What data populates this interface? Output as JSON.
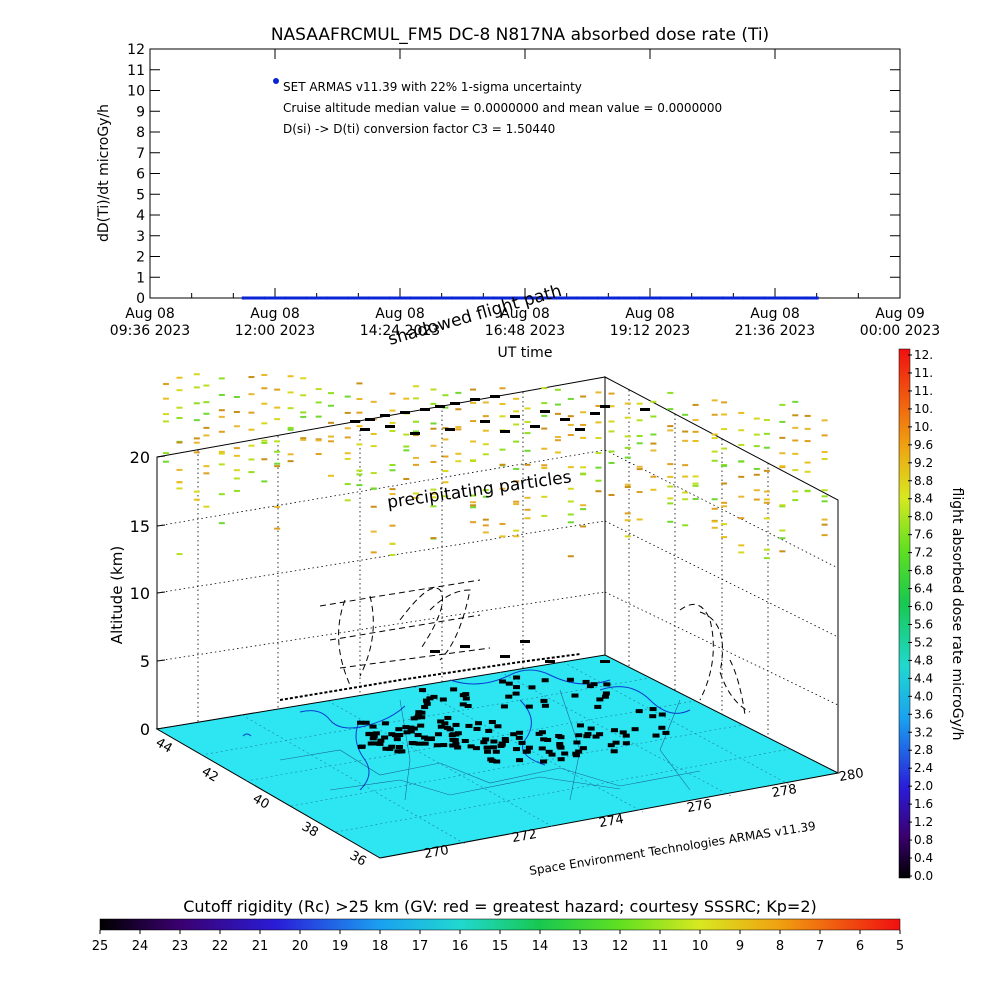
{
  "chart_data": [
    {
      "type": "scatter",
      "title": "NASAAFRCMUL_FM5 DC-8   N817NA absorbed dose rate (Ti)",
      "xlabel": "UT time",
      "ylabel": "dD(Ti)/dt microGy/h",
      "ylim": [
        0,
        12
      ],
      "yticks": [
        "0",
        "1",
        "2",
        "3",
        "4",
        "5",
        "6",
        "7",
        "8",
        "9",
        "10",
        "11",
        "12"
      ],
      "xticks": [
        {
          "line1": "Aug 08",
          "line2": "09:36 2023"
        },
        {
          "line1": "Aug 08",
          "line2": "12:00 2023"
        },
        {
          "line1": "Aug 08",
          "line2": "14:24 2023"
        },
        {
          "line1": "Aug 08",
          "line2": "16:48 2023"
        },
        {
          "line1": "Aug 08",
          "line2": "19:12 2023"
        },
        {
          "line1": "Aug 08",
          "line2": "21:36 2023"
        },
        {
          "line1": "Aug 09",
          "line2": "00:00 2023"
        }
      ],
      "x_range_hours": [
        9.6,
        24.0
      ],
      "series_color": "#0b25d6",
      "legend_marker_value": 10.5,
      "series": [
        {
          "values_hours": [
            11.4,
            11.8,
            12.2,
            12.6,
            13.0,
            13.4,
            13.8,
            14.2,
            14.6,
            15.0,
            15.4,
            15.8,
            16.2,
            16.6,
            17.0,
            17.4,
            17.8,
            18.2,
            18.6,
            19.0,
            19.4,
            19.8,
            20.2,
            20.6,
            21.0,
            21.4,
            21.8,
            22.2,
            22.4
          ],
          "values": [
            0,
            0,
            0,
            0,
            0,
            0,
            0,
            0,
            0,
            0,
            0,
            0,
            0,
            0,
            0,
            0,
            0,
            0,
            0,
            0,
            0,
            0,
            0,
            0,
            0,
            0,
            0,
            0,
            0
          ]
        }
      ],
      "annotations": [
        "SET ARMAS v11.39 with 22% 1-sigma uncertainty",
        "Cruise altitude median value = 0.0000000 and mean value = 0.0000000",
        "D(si) -> D(ti) conversion factor C3 = 1.50440"
      ]
    },
    {
      "type": "scatter",
      "zlabel": "Altitude (km)",
      "zticks": [
        "0",
        "5",
        "10",
        "15",
        "20"
      ],
      "lat_ticks": [
        "44",
        "42",
        "40",
        "38",
        "36"
      ],
      "lon_ticks": [
        "270",
        "272",
        "274",
        "276",
        "278",
        "280"
      ],
      "labels": {
        "shadow": "shadowed flight path",
        "precip": "precipitating particles",
        "credit": "Space Environment Technologies ARMAS v11.39"
      },
      "colorbar": {
        "label": "flight absorbed dose rate microGy/h",
        "ticks": [
          "0.0",
          "0.4",
          "0.8",
          "1.2",
          "1.6",
          "2.0",
          "2.4",
          "2.8",
          "3.2",
          "3.6",
          "4.0",
          "4.4",
          "4.8",
          "5.2",
          "5.6",
          "6.0",
          "6.4",
          "6.8",
          "7.2",
          "7.6",
          "8.0",
          "8.4",
          "8.8",
          "9.2",
          "9.6",
          "10.",
          "10.",
          "11.",
          "11.",
          "12."
        ]
      },
      "rigidity_bar": {
        "label": "Cutoff rigidity (Rc) >25 km (GV: red = greatest hazard; courtesy SSSRC; Kp=2)",
        "ticks": [
          "25",
          "24",
          "23",
          "22",
          "21",
          "20",
          "19",
          "18",
          "17",
          "16",
          "15",
          "14",
          "13",
          "12",
          "11",
          "10",
          "9",
          "8",
          "7",
          "6",
          "5"
        ]
      },
      "floor_color": "#2ee6f2"
    }
  ]
}
